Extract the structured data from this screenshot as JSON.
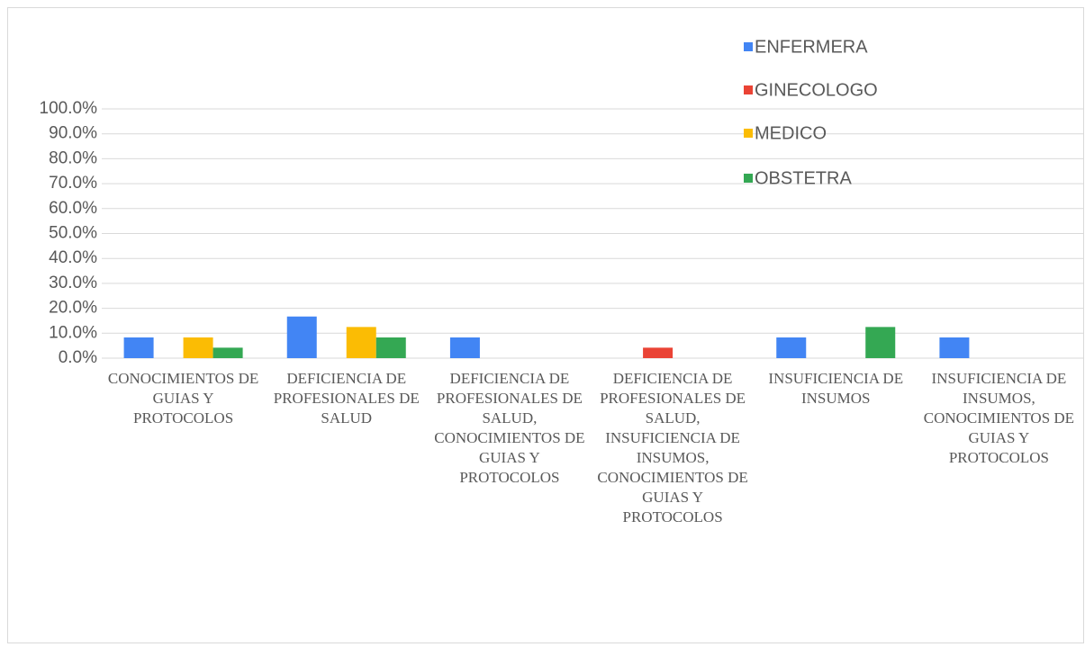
{
  "chart_data": {
    "type": "bar",
    "categories": [
      "CONOCIMIENTOS DE GUIAS Y PROTOCOLOS",
      "DEFICIENCIA DE PROFESIONALES DE SALUD",
      "DEFICIENCIA DE PROFESIONALES DE SALUD, CONOCIMIENTOS DE GUIAS Y PROTOCOLOS",
      "DEFICIENCIA DE PROFESIONALES DE SALUD, INSUFICIENCIA DE INSUMOS, CONOCIMIENTOS DE GUIAS Y PROTOCOLOS",
      "INSUFICIENCIA DE INSUMOS",
      "INSUFICIENCIA DE INSUMOS, CONOCIMIENTOS DE GUIAS Y PROTOCOLOS"
    ],
    "series": [
      {
        "name": "ENFERMERA",
        "color": "#4285f4",
        "values": [
          8.3,
          16.7,
          8.3,
          0,
          8.3,
          8.3
        ]
      },
      {
        "name": "GINECOLOGO",
        "color": "#ea4335",
        "values": [
          0,
          0,
          0,
          4.2,
          0,
          0
        ]
      },
      {
        "name": "MEDICO",
        "color": "#fbbc04",
        "values": [
          8.3,
          12.5,
          0,
          0,
          0,
          0
        ]
      },
      {
        "name": "OBSTETRA",
        "color": "#34a853",
        "values": [
          4.2,
          8.3,
          0,
          0,
          12.5,
          0
        ]
      }
    ],
    "ylim": [
      0,
      100
    ],
    "yticks": [
      {
        "value": 0,
        "label": "0.0%"
      },
      {
        "value": 10,
        "label": "10.0%"
      },
      {
        "value": 20,
        "label": "20.0%"
      },
      {
        "value": 30,
        "label": "30.0%"
      },
      {
        "value": 40,
        "label": "40.0%"
      },
      {
        "value": 50,
        "label": "50.0%"
      },
      {
        "value": 60,
        "label": "60.0%"
      },
      {
        "value": 70,
        "label": "70.0%"
      },
      {
        "value": 80,
        "label": "80.0%"
      },
      {
        "value": 90,
        "label": "90.0%"
      },
      {
        "value": 100,
        "label": "100.0%"
      }
    ],
    "grid": true,
    "legend": "top-right"
  }
}
